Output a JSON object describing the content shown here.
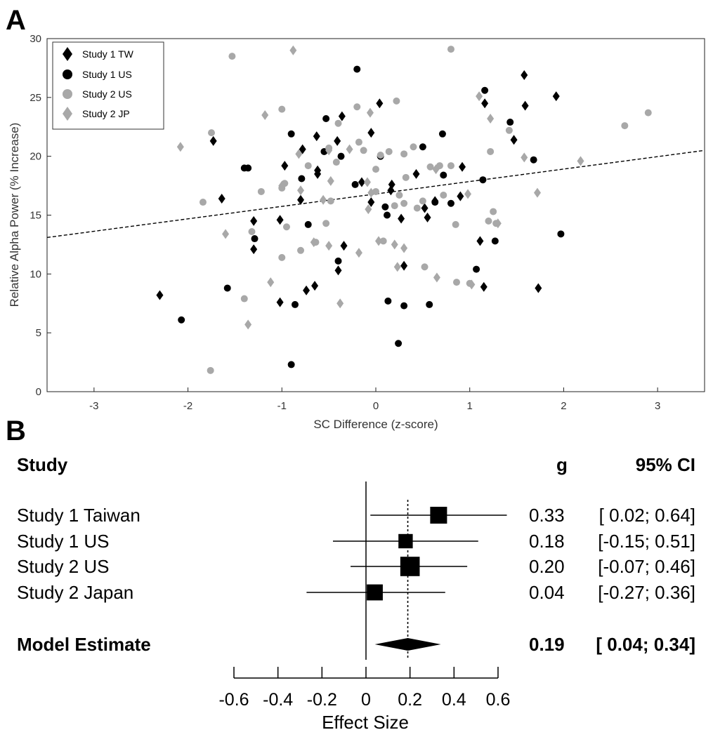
{
  "chart_data": [
    {
      "type": "scatter",
      "panel_label": "A",
      "xlabel": "SC Difference (z-score)",
      "ylabel": "Relative Alpha Power (% Increase)",
      "xlim": [
        -3.5,
        3.5
      ],
      "ylim": [
        0,
        30
      ],
      "xticks": [
        -3,
        -2,
        -1,
        0,
        1,
        2,
        3
      ],
      "yticks": [
        0,
        5,
        10,
        15,
        20,
        25,
        30
      ],
      "legend_position": "top-left",
      "trendline": {
        "style": "dashed",
        "points": [
          [
            -3.5,
            13.1
          ],
          [
            3.5,
            20.5
          ]
        ]
      },
      "colors": {
        "study1": "#000000",
        "study2": "#a8a8a8"
      },
      "series": [
        {
          "name": "Study 1 TW",
          "marker": "diamond",
          "color": "#000000",
          "points": [
            [
              -2.3,
              8.2
            ],
            [
              -1.73,
              21.3
            ],
            [
              -1.64,
              16.4
            ],
            [
              -1.3,
              14.5
            ],
            [
              -1.3,
              12.1
            ],
            [
              -1.02,
              14.6
            ],
            [
              -1.02,
              7.6
            ],
            [
              -0.97,
              19.2
            ],
            [
              -0.8,
              16.3
            ],
            [
              -0.78,
              20.6
            ],
            [
              -0.74,
              8.6
            ],
            [
              -0.65,
              9
            ],
            [
              -0.63,
              21.7
            ],
            [
              -0.62,
              18.8
            ],
            [
              -0.62,
              18.5
            ],
            [
              -0.41,
              21.3
            ],
            [
              -0.36,
              23.4
            ],
            [
              -0.4,
              10.3
            ],
            [
              -0.34,
              12.4
            ],
            [
              -0.15,
              17.8
            ],
            [
              -0.05,
              22
            ],
            [
              0.04,
              24.5
            ],
            [
              -0.05,
              16.1
            ],
            [
              0.17,
              17.6
            ],
            [
              0.16,
              17.1
            ],
            [
              0.27,
              14.7
            ],
            [
              0.3,
              10.7
            ],
            [
              0.43,
              18.5
            ],
            [
              0.52,
              15.6
            ],
            [
              0.55,
              14.8
            ],
            [
              0.63,
              16.2
            ],
            [
              0.9,
              16.6
            ],
            [
              0.92,
              19.1
            ],
            [
              1.11,
              12.8
            ],
            [
              1.15,
              8.9
            ],
            [
              1.16,
              24.5
            ],
            [
              1.47,
              21.4
            ],
            [
              1.58,
              26.9
            ],
            [
              1.59,
              24.3
            ],
            [
              1.73,
              8.8
            ],
            [
              1.92,
              25.1
            ]
          ]
        },
        {
          "name": "Study 1 US",
          "marker": "circle",
          "color": "#000000",
          "points": [
            [
              -2.07,
              6.1
            ],
            [
              -1.58,
              8.8
            ],
            [
              -1.4,
              19
            ],
            [
              -1.36,
              19
            ],
            [
              -1.29,
              13
            ],
            [
              -0.9,
              21.9
            ],
            [
              -0.9,
              2.3
            ],
            [
              -0.86,
              7.4
            ],
            [
              -0.79,
              18.1
            ],
            [
              -0.72,
              14.2
            ],
            [
              -0.55,
              20.4
            ],
            [
              -0.53,
              23.2
            ],
            [
              -0.4,
              11.1
            ],
            [
              -0.37,
              20
            ],
            [
              -0.22,
              17.6
            ],
            [
              -0.2,
              27.4
            ],
            [
              0.05,
              20
            ],
            [
              0.1,
              15.7
            ],
            [
              0.12,
              15
            ],
            [
              0.13,
              7.7
            ],
            [
              0.24,
              4.1
            ],
            [
              0.3,
              7.3
            ],
            [
              0.5,
              20.8
            ],
            [
              0.57,
              7.4
            ],
            [
              0.63,
              16.1
            ],
            [
              0.71,
              21.9
            ],
            [
              0.72,
              18.4
            ],
            [
              0.8,
              16
            ],
            [
              1.07,
              10.4
            ],
            [
              1.14,
              18
            ],
            [
              1.16,
              25.6
            ],
            [
              1.27,
              12.8
            ],
            [
              1.43,
              22.9
            ],
            [
              1.68,
              19.7
            ],
            [
              1.97,
              13.4
            ]
          ]
        },
        {
          "name": "Study 2 US",
          "marker": "circle",
          "color": "#a8a8a8",
          "points": [
            [
              -1.84,
              16.1
            ],
            [
              -1.75,
              22
            ],
            [
              -1.76,
              1.8
            ],
            [
              -1.53,
              28.5
            ],
            [
              -1.4,
              7.9
            ],
            [
              -1.32,
              13.6
            ],
            [
              -1.22,
              17
            ],
            [
              -1.0,
              24
            ],
            [
              -1.0,
              17.3
            ],
            [
              -1.0,
              11.4
            ],
            [
              -0.97,
              17.7
            ],
            [
              -0.95,
              14
            ],
            [
              -0.8,
              12
            ],
            [
              -0.72,
              19.2
            ],
            [
              -0.64,
              12.7
            ],
            [
              -0.53,
              14.3
            ],
            [
              -0.5,
              20.7
            ],
            [
              -0.48,
              16.2
            ],
            [
              -0.42,
              19.5
            ],
            [
              -0.4,
              22.8
            ],
            [
              -0.2,
              24.2
            ],
            [
              -0.18,
              21.2
            ],
            [
              -0.13,
              20.5
            ],
            [
              0.0,
              18.9
            ],
            [
              0.0,
              17
            ],
            [
              0.05,
              20.1
            ],
            [
              0.08,
              12.8
            ],
            [
              0.14,
              20.4
            ],
            [
              0.2,
              15.8
            ],
            [
              0.22,
              24.7
            ],
            [
              0.25,
              16.7
            ],
            [
              0.3,
              20.2
            ],
            [
              0.3,
              16
            ],
            [
              0.32,
              18.2
            ],
            [
              0.4,
              20.8
            ],
            [
              0.44,
              15.6
            ],
            [
              0.5,
              16.2
            ],
            [
              0.52,
              10.6
            ],
            [
              0.58,
              19.1
            ],
            [
              0.68,
              19.2
            ],
            [
              0.72,
              16.7
            ],
            [
              0.8,
              29.1
            ],
            [
              0.8,
              19.2
            ],
            [
              0.85,
              14.2
            ],
            [
              0.86,
              9.3
            ],
            [
              1.0,
              9.2
            ],
            [
              1.22,
              20.4
            ],
            [
              1.2,
              14.5
            ],
            [
              1.25,
              15.3
            ],
            [
              1.28,
              14.3
            ],
            [
              1.42,
              22.2
            ],
            [
              2.65,
              22.6
            ],
            [
              2.9,
              23.7
            ]
          ]
        },
        {
          "name": "Study 2 JP",
          "marker": "diamond",
          "color": "#a8a8a8",
          "points": [
            [
              -2.08,
              20.8
            ],
            [
              -1.6,
              13.4
            ],
            [
              -1.36,
              5.7
            ],
            [
              -1.18,
              23.5
            ],
            [
              -1.12,
              9.3
            ],
            [
              -1.0,
              17.5
            ],
            [
              -0.88,
              29
            ],
            [
              -0.82,
              20.2
            ],
            [
              -0.8,
              17.1
            ],
            [
              -0.66,
              12.7
            ],
            [
              -0.56,
              16.3
            ],
            [
              -0.5,
              20.5
            ],
            [
              -0.48,
              17.9
            ],
            [
              -0.5,
              12.4
            ],
            [
              -0.38,
              7.5
            ],
            [
              -0.28,
              20.6
            ],
            [
              -0.18,
              11.8
            ],
            [
              -0.09,
              17.8
            ],
            [
              -0.06,
              23.7
            ],
            [
              -0.05,
              16.9
            ],
            [
              -0.08,
              15.5
            ],
            [
              0.03,
              12.8
            ],
            [
              0.2,
              12.5
            ],
            [
              0.3,
              12.2
            ],
            [
              0.23,
              10.6
            ],
            [
              0.65,
              9.7
            ],
            [
              0.64,
              18.9
            ],
            [
              0.98,
              16.8
            ],
            [
              1.02,
              9.1
            ],
            [
              1.1,
              25.1
            ],
            [
              1.22,
              23.2
            ],
            [
              1.3,
              14.3
            ],
            [
              1.58,
              19.9
            ],
            [
              1.72,
              16.9
            ],
            [
              2.18,
              19.6
            ]
          ]
        }
      ]
    },
    {
      "type": "forest",
      "panel_label": "B",
      "headers": {
        "study": "Study",
        "g": "g",
        "ci": "95% CI"
      },
      "xlabel": "Effect Size",
      "xlim": [
        -0.6,
        0.6
      ],
      "xticks": [
        "-0.6",
        "-0.4",
        "-0.2",
        "0",
        "0.2",
        "0.4",
        "0.6"
      ],
      "reference_line": 0.19,
      "studies": [
        {
          "name": "Study 1 Taiwan",
          "g": 0.33,
          "lower": 0.02,
          "upper": 0.64,
          "weight": 1.0,
          "g_text": "0.33",
          "ci_text": "[ 0.02; 0.64]"
        },
        {
          "name": "Study 1 US",
          "g": 0.18,
          "lower": -0.15,
          "upper": 0.51,
          "weight": 0.85,
          "g_text": "0.18",
          "ci_text": "[-0.15; 0.51]"
        },
        {
          "name": "Study 2 US",
          "g": 0.2,
          "lower": -0.07,
          "upper": 0.46,
          "weight": 1.15,
          "g_text": "0.20",
          "ci_text": "[-0.07; 0.46]"
        },
        {
          "name": "Study 2 Japan",
          "g": 0.04,
          "lower": -0.27,
          "upper": 0.36,
          "weight": 0.95,
          "g_text": "0.04",
          "ci_text": "[-0.27; 0.36]"
        }
      ],
      "summary": {
        "name": "Model Estimate",
        "g": 0.19,
        "lower": 0.04,
        "upper": 0.34,
        "g_text": "0.19",
        "ci_text": "[ 0.04; 0.34]"
      }
    }
  ]
}
